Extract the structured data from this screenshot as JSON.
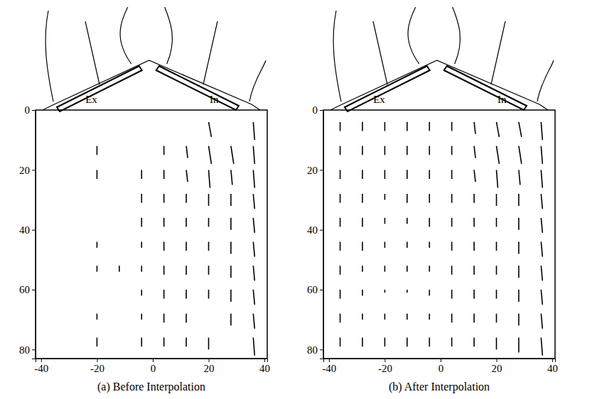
{
  "chart_data": [
    {
      "type": "quiver",
      "title": "(a) Before Interpolation",
      "annotations": [
        {
          "text": "Ex",
          "x": -22
        },
        {
          "text": "In",
          "x": 22
        }
      ],
      "xlim": [
        -42,
        41
      ],
      "ylim": [
        83,
        0
      ],
      "xticks": [
        -40,
        -20,
        0,
        20,
        40
      ],
      "yticks": [
        0,
        20,
        40,
        60,
        80
      ],
      "grid": false,
      "color": "#000000",
      "x": [
        -36,
        -28,
        -20,
        -12,
        -4,
        4,
        12,
        20,
        28,
        36
      ],
      "y": [
        4,
        12,
        20,
        28,
        36,
        44,
        52,
        60,
        68,
        76
      ],
      "u": [
        [
          null,
          null,
          null,
          null,
          null,
          null,
          null,
          1,
          null,
          0.5
        ],
        [
          null,
          null,
          0,
          null,
          null,
          0,
          0.5,
          1,
          1,
          0.5
        ],
        [
          null,
          null,
          0,
          null,
          0,
          0,
          0.5,
          0.5,
          0.5,
          0.5
        ],
        [
          null,
          null,
          null,
          null,
          0,
          0,
          0,
          0,
          0,
          0.5
        ],
        [
          null,
          null,
          null,
          null,
          0,
          0,
          0,
          0,
          0,
          0.5
        ],
        [
          null,
          null,
          0,
          null,
          0,
          0,
          0,
          0,
          0,
          0.5
        ],
        [
          null,
          null,
          0,
          0,
          0,
          0,
          0,
          0,
          0,
          0.5
        ],
        [
          null,
          null,
          null,
          null,
          0,
          0,
          0,
          0,
          0,
          0.5
        ],
        [
          null,
          null,
          0,
          null,
          0,
          0,
          0,
          null,
          0,
          0.5
        ],
        [
          null,
          null,
          0,
          null,
          0,
          0,
          0,
          0,
          null,
          0.5
        ]
      ],
      "v": [
        [
          null,
          null,
          null,
          null,
          null,
          null,
          null,
          5,
          null,
          6
        ],
        [
          null,
          null,
          3,
          null,
          null,
          3,
          4,
          6,
          6,
          6
        ],
        [
          null,
          null,
          3,
          null,
          3,
          3,
          4,
          6,
          5,
          6
        ],
        [
          null,
          null,
          null,
          null,
          3,
          3,
          3,
          4,
          4,
          5
        ],
        [
          null,
          null,
          null,
          null,
          3,
          3,
          3,
          3,
          4,
          5
        ],
        [
          null,
          null,
          2,
          null,
          2,
          3,
          3,
          3,
          4,
          5
        ],
        [
          null,
          null,
          2,
          2,
          2,
          3,
          3,
          3,
          4,
          5
        ],
        [
          null,
          null,
          null,
          null,
          2,
          3,
          3,
          3,
          4,
          5
        ],
        [
          null,
          null,
          2,
          null,
          2,
          3,
          3,
          null,
          4,
          5
        ],
        [
          null,
          null,
          3,
          null,
          3,
          3,
          3,
          4,
          null,
          6
        ]
      ]
    },
    {
      "type": "quiver",
      "title": "(b) After Interpolation",
      "annotations": [
        {
          "text": "Ex",
          "x": -22
        },
        {
          "text": "In",
          "x": 22
        }
      ],
      "xlim": [
        -42,
        41
      ],
      "ylim": [
        83,
        0
      ],
      "xticks": [
        -40,
        -20,
        0,
        20,
        40
      ],
      "yticks": [
        0,
        20,
        40,
        60,
        80
      ],
      "grid": false,
      "color": "#000000",
      "x": [
        -36,
        -28,
        -20,
        -12,
        -4,
        4,
        12,
        20,
        28,
        36
      ],
      "y": [
        4,
        12,
        20,
        28,
        36,
        44,
        52,
        60,
        68,
        76
      ],
      "u": [
        [
          0,
          0,
          0,
          0,
          0,
          0,
          0.5,
          1,
          1,
          0.5
        ],
        [
          0,
          0,
          0,
          0,
          0,
          0,
          0.5,
          1,
          1,
          0.5
        ],
        [
          0,
          0,
          0,
          0,
          0,
          0,
          0.5,
          0.5,
          0.5,
          0.5
        ],
        [
          0,
          0,
          0,
          0,
          0,
          0,
          0,
          0,
          0,
          0.5
        ],
        [
          0,
          0,
          0,
          0,
          0,
          0,
          0,
          0,
          0,
          0.5
        ],
        [
          0,
          0,
          0,
          0,
          0,
          0,
          0,
          0,
          0,
          0.5
        ],
        [
          0,
          0,
          0,
          0,
          0,
          0,
          0,
          0,
          0,
          0.5
        ],
        [
          0,
          0,
          0,
          0,
          0,
          0,
          0,
          0,
          0,
          0.5
        ],
        [
          0,
          0,
          0,
          0,
          0,
          0,
          0,
          0,
          0,
          0.5
        ],
        [
          0,
          0,
          0,
          0,
          0,
          0,
          0,
          0,
          0,
          0.5
        ]
      ],
      "v": [
        [
          3,
          3,
          3,
          3,
          3,
          3,
          4,
          5,
          5,
          6
        ],
        [
          3,
          3,
          3,
          3,
          3,
          3,
          4,
          6,
          6,
          6
        ],
        [
          3,
          3,
          3,
          3,
          3,
          3,
          4,
          6,
          5,
          6
        ],
        [
          3,
          3,
          2,
          3,
          3,
          3,
          3,
          4,
          4,
          5
        ],
        [
          3,
          3,
          2,
          2,
          3,
          3,
          3,
          3,
          4,
          5
        ],
        [
          3,
          3,
          2,
          2,
          2,
          3,
          3,
          3,
          4,
          5
        ],
        [
          3,
          2,
          2,
          2,
          2,
          3,
          3,
          3,
          4,
          5
        ],
        [
          3,
          2,
          1,
          1,
          2,
          3,
          3,
          3,
          4,
          5
        ],
        [
          3,
          2,
          2,
          2,
          2,
          3,
          3,
          3,
          4,
          5
        ],
        [
          3,
          3,
          3,
          3,
          3,
          3,
          3,
          4,
          5,
          6
        ]
      ]
    }
  ]
}
